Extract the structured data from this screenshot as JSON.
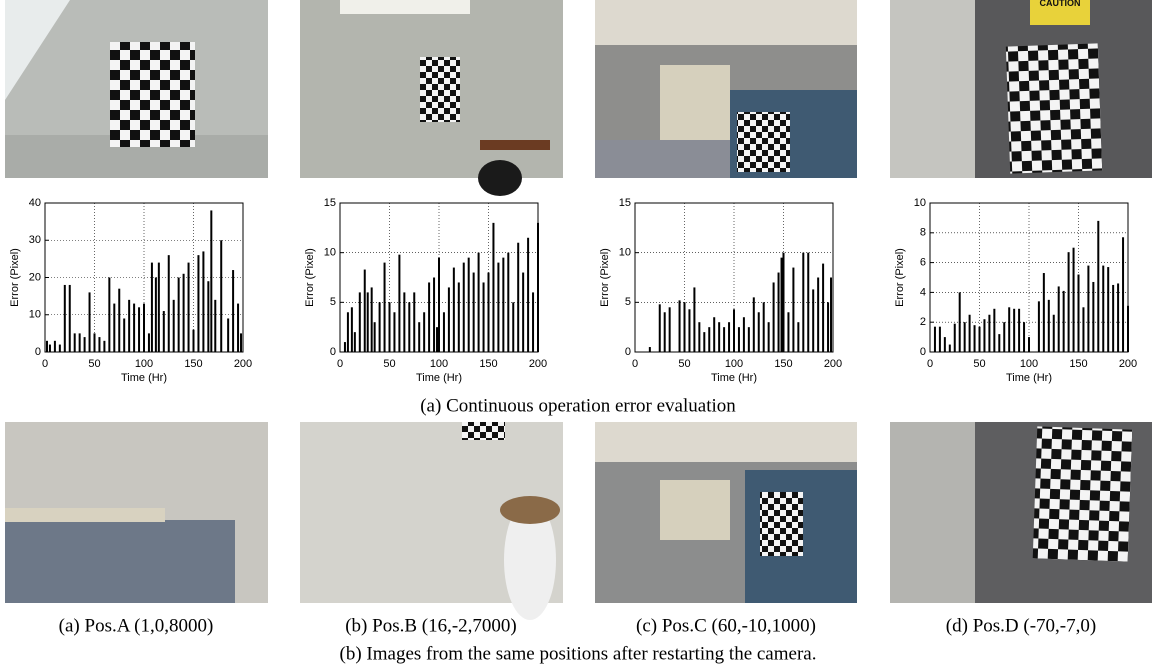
{
  "chart_data": [
    {
      "type": "bar",
      "x_label": "Time (Hr)",
      "y_label": "Error (Pixel)",
      "xlim": [
        0,
        200
      ],
      "xticks": [
        0,
        50,
        100,
        150,
        200
      ],
      "ylim": [
        0,
        40
      ],
      "yticks": [
        0,
        10,
        20,
        30,
        40
      ],
      "grid": true,
      "color": "#000000",
      "x": [
        2,
        5,
        10,
        15,
        20,
        25,
        30,
        35,
        40,
        45,
        50,
        55,
        60,
        65,
        70,
        75,
        80,
        85,
        90,
        95,
        100,
        105,
        108,
        112,
        115,
        120,
        125,
        130,
        135,
        140,
        145,
        150,
        155,
        160,
        165,
        168,
        172,
        178,
        185,
        190,
        195,
        198
      ],
      "values": [
        3,
        2,
        3,
        2,
        18,
        18,
        5,
        5,
        4,
        16,
        5,
        4,
        3,
        20,
        13,
        17,
        9,
        14,
        13,
        12,
        13,
        5,
        24,
        20,
        24,
        11,
        26,
        14,
        20,
        21,
        24,
        6,
        26,
        27,
        19,
        38,
        14,
        30,
        9,
        22,
        13,
        5
      ]
    },
    {
      "type": "bar",
      "x_label": "Time (Hr)",
      "y_label": "Error (Pixel)",
      "xlim": [
        0,
        200
      ],
      "xticks": [
        0,
        50,
        100,
        150,
        200
      ],
      "ylim": [
        0,
        15
      ],
      "yticks": [
        0,
        5,
        10,
        15
      ],
      "grid": true,
      "color": "#000000",
      "x": [
        5,
        8,
        12,
        15,
        20,
        25,
        28,
        32,
        35,
        40,
        45,
        50,
        55,
        60,
        65,
        70,
        75,
        80,
        85,
        90,
        95,
        98,
        100,
        105,
        110,
        115,
        120,
        125,
        130,
        135,
        140,
        145,
        150,
        155,
        160,
        165,
        170,
        175,
        180,
        185,
        190,
        195,
        200
      ],
      "values": [
        1,
        4,
        4.5,
        2,
        6,
        8.3,
        6,
        6.5,
        3,
        5,
        9,
        5,
        4,
        9.8,
        6,
        5,
        6,
        3,
        4,
        7,
        7.5,
        2.5,
        9.5,
        4,
        6.5,
        8.5,
        7,
        9,
        9.5,
        8,
        10,
        7,
        8,
        13,
        9,
        9.5,
        10,
        5,
        11,
        8,
        11.5,
        6,
        13
      ]
    },
    {
      "type": "bar",
      "x_label": "Time (Hr)",
      "y_label": "Error (Pixel)",
      "xlim": [
        0,
        200
      ],
      "xticks": [
        0,
        50,
        100,
        150,
        200
      ],
      "ylim": [
        0,
        15
      ],
      "yticks": [
        0,
        5,
        10,
        15
      ],
      "grid": true,
      "color": "#000000",
      "x": [
        15,
        25,
        30,
        35,
        45,
        50,
        55,
        60,
        65,
        70,
        75,
        80,
        85,
        90,
        95,
        100,
        105,
        110,
        115,
        120,
        125,
        130,
        135,
        140,
        145,
        148,
        150,
        155,
        160,
        165,
        170,
        175,
        180,
        185,
        190,
        195,
        198
      ],
      "values": [
        0.5,
        4.8,
        4,
        4.5,
        5.2,
        5,
        4.3,
        6.5,
        3,
        2,
        2.5,
        3.5,
        3,
        2.5,
        3,
        4.3,
        2.5,
        3.5,
        2.5,
        5.5,
        4,
        5,
        3,
        7,
        8,
        9.5,
        10,
        4,
        8.5,
        3,
        10,
        10,
        6.3,
        7.5,
        8.9,
        5,
        7.5
      ]
    },
    {
      "type": "bar",
      "x_label": "Time (Hr)",
      "y_label": "Error (Pixel)",
      "xlim": [
        0,
        200
      ],
      "xticks": [
        0,
        50,
        100,
        150,
        200
      ],
      "ylim": [
        0,
        10
      ],
      "yticks": [
        0,
        2,
        4,
        6,
        8,
        10
      ],
      "grid": true,
      "color": "#000000",
      "x": [
        5,
        10,
        15,
        20,
        25,
        30,
        35,
        40,
        45,
        50,
        55,
        60,
        65,
        70,
        75,
        80,
        85,
        90,
        95,
        100,
        110,
        115,
        120,
        125,
        130,
        135,
        140,
        145,
        150,
        155,
        160,
        165,
        170,
        175,
        180,
        185,
        190,
        195,
        200
      ],
      "values": [
        1.7,
        1.7,
        1,
        0.5,
        1.9,
        4,
        2,
        2.5,
        1.8,
        1.7,
        2.2,
        2.5,
        2.9,
        1.2,
        2,
        3,
        2.9,
        2.9,
        2,
        1,
        3.4,
        5.3,
        3.5,
        2.5,
        4.4,
        4.1,
        6.7,
        7,
        5.2,
        3,
        5.8,
        4.7,
        8.8,
        5.8,
        5.7,
        4.5,
        4.6,
        7.7,
        3.1
      ]
    }
  ],
  "photo_text": "CAUTION",
  "captions": {
    "top": "(a) Continuous operation error evaluation",
    "sub": [
      "(a) Pos.A (1,0,8000)",
      "(b) Pos.B (16,-2,7000)",
      "(c) Pos.C (60,-10,1000)",
      "(d) Pos.D (-70,-7,0)"
    ],
    "bottom": "(b) Images from the same positions after restarting the camera."
  }
}
